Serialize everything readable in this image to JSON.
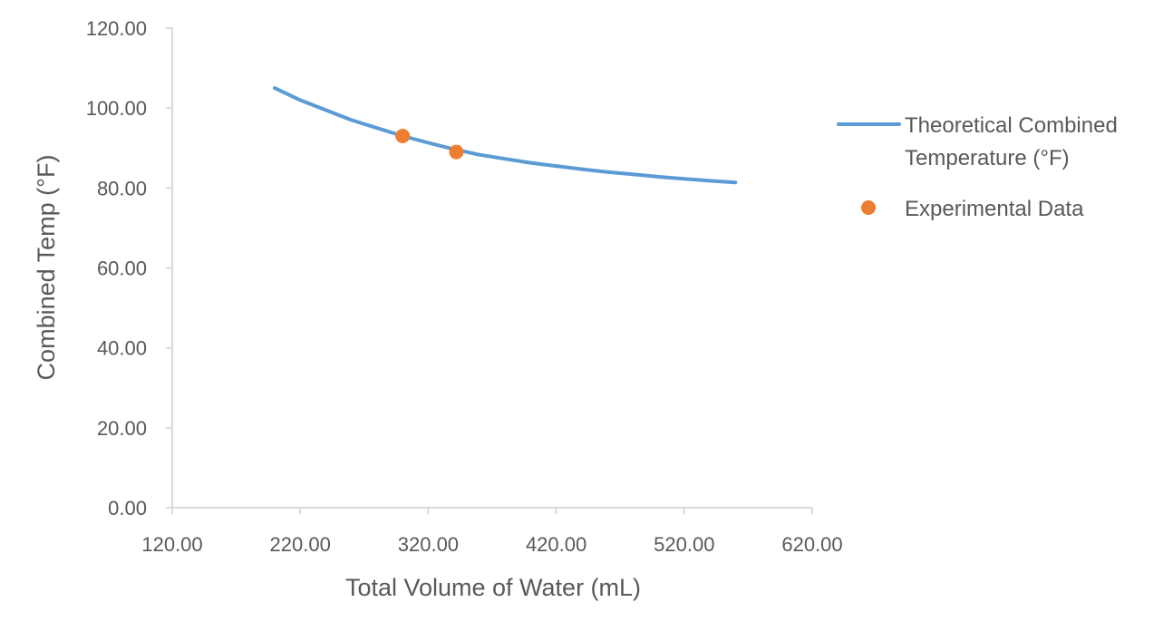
{
  "chart_data": {
    "type": "scatter",
    "title": "",
    "xlabel": "Total Volume of Water (mL)",
    "ylabel": "Combined Temp (°F)",
    "xlim": [
      120,
      620
    ],
    "ylim": [
      0,
      120
    ],
    "x_ticks": [
      "120.00",
      "220.00",
      "320.00",
      "420.00",
      "520.00",
      "620.00"
    ],
    "y_ticks": [
      "0.00",
      "20.00",
      "40.00",
      "60.00",
      "80.00",
      "100.00",
      "120.00"
    ],
    "grid": false,
    "legend_position": "right",
    "series": [
      {
        "name": "Theoretical Combined Temperature (°F)",
        "type": "line",
        "color": "#5b9bd5",
        "x": [
          200,
          220,
          240,
          260,
          280,
          300,
          320,
          340,
          360,
          380,
          400,
          420,
          440,
          460,
          480,
          500,
          520,
          540,
          560
        ],
        "y": [
          105.0,
          102.0,
          99.5,
          97.0,
          95.0,
          93.0,
          91.3,
          89.7,
          88.3,
          87.3,
          86.3,
          85.5,
          84.7,
          84.0,
          83.4,
          82.8,
          82.3,
          81.8,
          81.4
        ]
      },
      {
        "name": "Experimental Data",
        "type": "scatter",
        "color": "#ed7d31",
        "x": [
          300,
          342
        ],
        "y": [
          93.0,
          89.0
        ]
      }
    ],
    "legend": {
      "line_label_lines": [
        "Theoretical Combined",
        "Temperature (°F)"
      ],
      "scatter_label": "Experimental Data"
    }
  }
}
